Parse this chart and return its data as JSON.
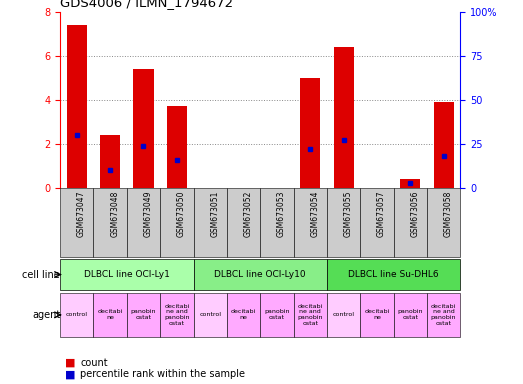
{
  "title": "GDS4006 / ILMN_1794672",
  "samples": [
    "GSM673047",
    "GSM673048",
    "GSM673049",
    "GSM673050",
    "GSM673051",
    "GSM673052",
    "GSM673053",
    "GSM673054",
    "GSM673055",
    "GSM673057",
    "GSM673056",
    "GSM673058"
  ],
  "counts": [
    7.4,
    2.4,
    5.4,
    3.7,
    0,
    0,
    0,
    5.0,
    6.4,
    0,
    0.4,
    3.9
  ],
  "percentiles": [
    30,
    10,
    24,
    16,
    0,
    0,
    0,
    22,
    27,
    0,
    3,
    18
  ],
  "left_ylim": [
    0,
    8
  ],
  "right_ylim": [
    0,
    100
  ],
  "left_yticks": [
    0,
    2,
    4,
    6,
    8
  ],
  "right_yticks": [
    0,
    25,
    50,
    75,
    100
  ],
  "right_yticklabels": [
    "0",
    "25",
    "50",
    "75",
    "100%"
  ],
  "bar_color": "#dd0000",
  "dot_color": "#0000cc",
  "cell_lines": [
    {
      "label": "DLBCL line OCI-Ly1",
      "start": 0,
      "end": 4,
      "color": "#aaffaa"
    },
    {
      "label": "DLBCL line OCI-Ly10",
      "start": 4,
      "end": 8,
      "color": "#88ee88"
    },
    {
      "label": "DLBCL line Su-DHL6",
      "start": 8,
      "end": 12,
      "color": "#55dd55"
    }
  ],
  "agents": [
    {
      "label": "control",
      "bg": "#ffccff"
    },
    {
      "label": "decitabi\nne",
      "bg": "#ffaaff"
    },
    {
      "label": "panobin\nostat",
      "bg": "#ffaaff"
    },
    {
      "label": "decitabi\nne and\npanobin\nostat",
      "bg": "#ffaaff"
    },
    {
      "label": "control",
      "bg": "#ffccff"
    },
    {
      "label": "decitabi\nne",
      "bg": "#ffaaff"
    },
    {
      "label": "panobin\nostat",
      "bg": "#ffaaff"
    },
    {
      "label": "decitabi\nne and\npanobin\nostat",
      "bg": "#ffaaff"
    },
    {
      "label": "control",
      "bg": "#ffccff"
    },
    {
      "label": "decitabi\nne",
      "bg": "#ffaaff"
    },
    {
      "label": "panobin\nostat",
      "bg": "#ffaaff"
    },
    {
      "label": "decitabi\nne and\npanobin\nostat",
      "bg": "#ffaaff"
    }
  ],
  "grid_color": "#888888",
  "bg_color": "#ffffff",
  "tick_bg_color": "#cccccc",
  "cell_line_label": "cell line",
  "agent_label": "agent",
  "legend_count": "count",
  "legend_percentile": "percentile rank within the sample"
}
